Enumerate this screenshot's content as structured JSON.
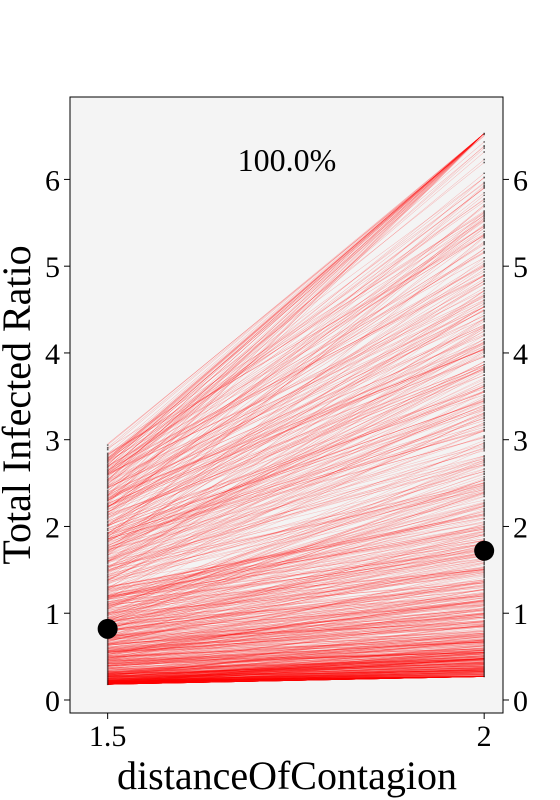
{
  "chart_data": {
    "type": "line",
    "title": "",
    "xlabel": "distanceOfContagion",
    "ylabel": "Total Infected Ratio",
    "annotation": "100.0%",
    "x": [
      1.5,
      2
    ],
    "x_tick_labels": [
      "1.5",
      "2"
    ],
    "y_ticks": [
      0,
      1,
      2,
      3,
      4,
      5,
      6
    ],
    "y_tick_labels": [
      "0",
      "1",
      "2",
      "3",
      "4",
      "5",
      "6"
    ],
    "xlim": [
      1.45,
      2.025
    ],
    "ylim": [
      -0.15,
      6.95
    ],
    "grid": false,
    "line_color": "#ff0000",
    "point_color": "#000000",
    "background_color": "#f4f4f4",
    "mean_points": [
      {
        "x": 1.5,
        "y": 0.82
      },
      {
        "x": 2,
        "y": 1.72
      }
    ],
    "series_summary": {
      "count": 1000,
      "y_at_1_5": {
        "min": 0.18,
        "max": 2.95
      },
      "y_at_2": {
        "min": 0.27,
        "max": 6.53
      }
    },
    "series": [
      {
        "values": [
          0.25,
          0.35
        ]
      },
      {
        "values": [
          0.3,
          0.42
        ]
      },
      {
        "values": [
          0.4,
          0.55
        ]
      },
      {
        "values": [
          0.5,
          0.7
        ]
      },
      {
        "values": [
          0.6,
          0.85
        ]
      },
      {
        "values": [
          0.7,
          1.0
        ]
      },
      {
        "values": [
          0.8,
          1.1
        ]
      },
      {
        "values": [
          0.9,
          1.2
        ]
      },
      {
        "values": [
          1.0,
          1.35
        ]
      },
      {
        "values": [
          1.1,
          1.5
        ]
      },
      {
        "values": [
          1.2,
          1.8
        ]
      },
      {
        "values": [
          1.3,
          2.1
        ]
      },
      {
        "values": [
          1.4,
          2.5
        ]
      },
      {
        "values": [
          1.5,
          2.9
        ]
      },
      {
        "values": [
          1.6,
          3.4
        ]
      },
      {
        "values": [
          1.7,
          3.9
        ]
      },
      {
        "values": [
          2.0,
          4.5
        ]
      },
      {
        "values": [
          2.3,
          5.2
        ]
      },
      {
        "values": [
          2.6,
          5.9
        ]
      },
      {
        "values": [
          2.95,
          6.5
        ]
      }
    ]
  }
}
